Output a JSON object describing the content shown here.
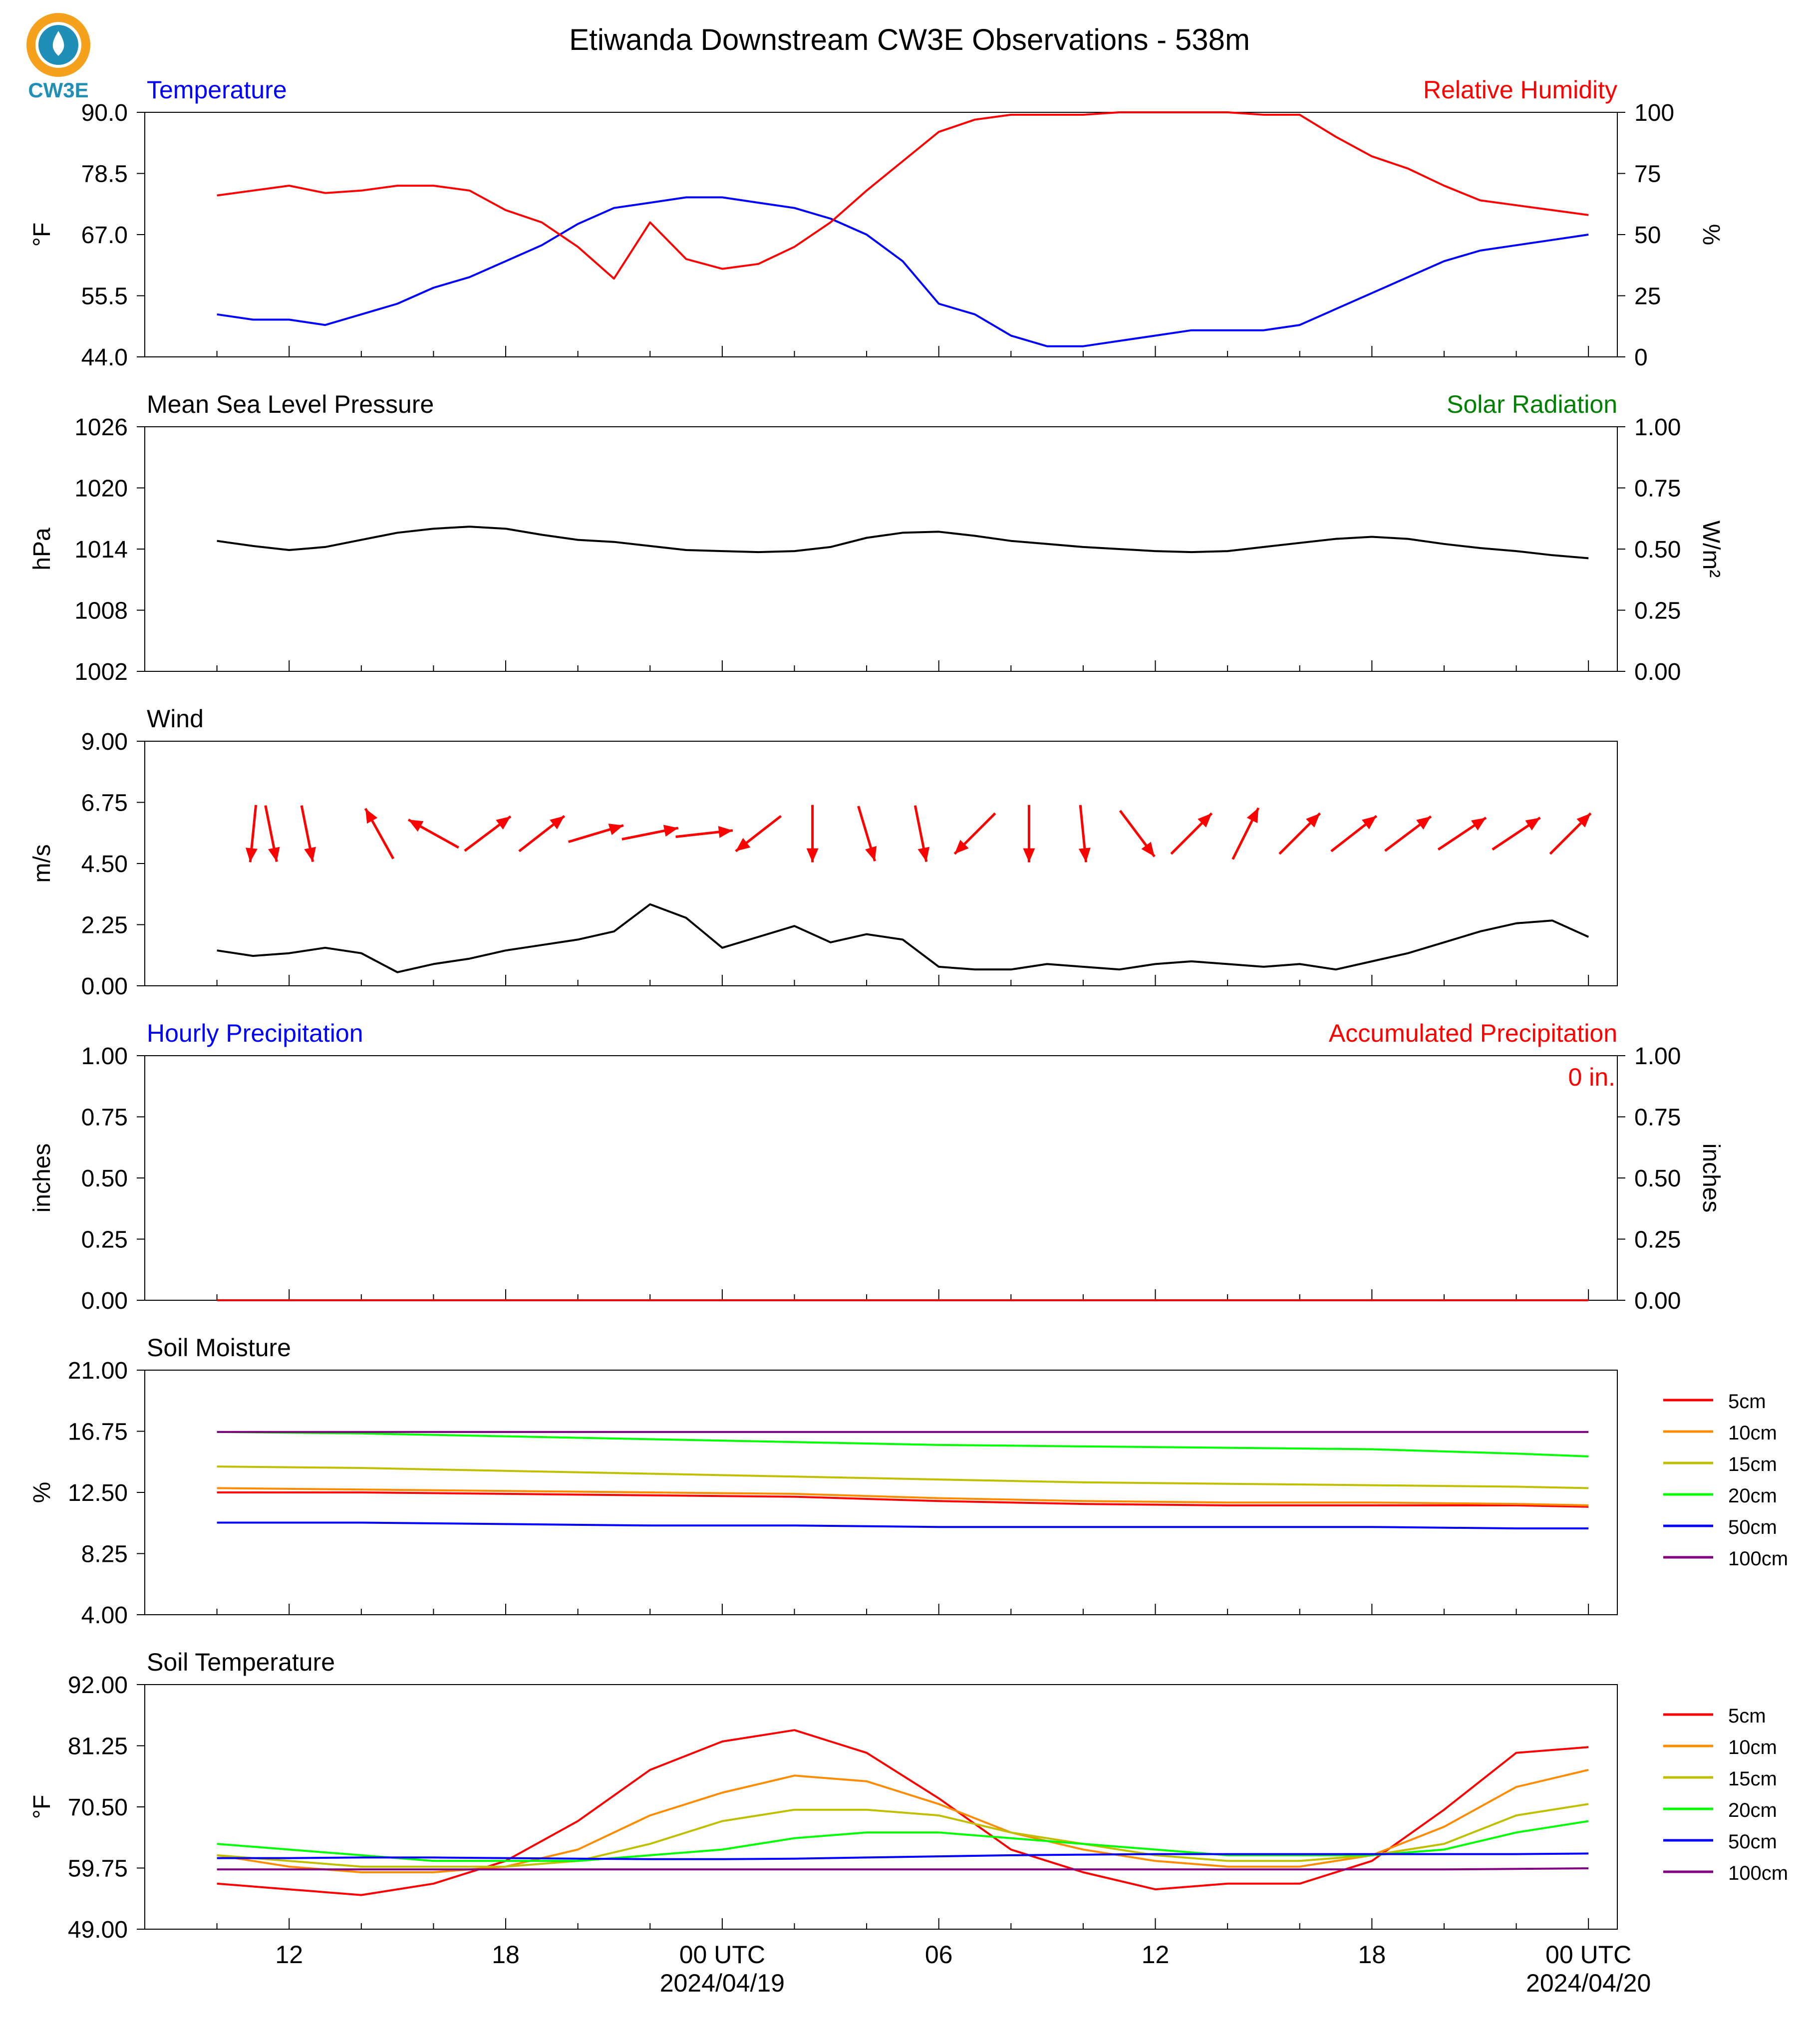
{
  "title": "Etiwanda Downstream CW3E Observations - 538m",
  "logo": {
    "text": "CW3E",
    "icon": "water-drop-logo-icon",
    "color": "#1f8fb8",
    "accent": "#f5a11c"
  },
  "x_axis": {
    "tick_labels": [
      "12",
      "18",
      "00 UTC",
      "06",
      "12",
      "18",
      "00 UTC"
    ],
    "date_labels": [
      "2024/04/19",
      "2024/04/20"
    ]
  },
  "chart_data": [
    {
      "type": "line",
      "title_left": "Temperature",
      "title_right": "Relative Humidity",
      "ylabel_left": "°F",
      "ylabel_right": "%",
      "ylim": [
        44.0,
        90.0
      ],
      "y2lim": [
        0,
        100
      ],
      "yticks": [
        "44.0",
        "55.5",
        "67.0",
        "78.5",
        "90.0"
      ],
      "y2ticks": [
        "0",
        "25",
        "50",
        "75",
        "100"
      ],
      "colors": {
        "left": "#0000ff",
        "right": "#ff0000"
      },
      "x_hours": [
        10,
        11,
        12,
        13,
        14,
        15,
        16,
        17,
        18,
        19,
        20,
        21,
        22,
        23,
        24,
        25,
        26,
        27,
        28,
        29,
        30,
        31,
        32,
        33,
        34,
        35,
        36,
        37,
        38,
        39,
        40,
        41,
        42,
        43,
        44,
        45,
        46,
        47,
        48
      ],
      "series": [
        {
          "name": "Temperature",
          "axis": "left",
          "values": [
            52,
            51,
            51,
            50,
            52,
            54,
            57,
            59,
            62,
            65,
            69,
            72,
            73,
            74,
            74,
            73,
            72,
            70,
            67,
            62,
            54,
            52,
            48,
            46,
            46,
            47,
            48,
            49,
            49,
            49,
            50,
            53,
            56,
            59,
            62,
            64,
            65,
            66,
            67
          ]
        },
        {
          "name": "Relative Humidity",
          "axis": "right",
          "values": [
            66,
            68,
            70,
            67,
            68,
            70,
            70,
            68,
            60,
            55,
            45,
            32,
            55,
            40,
            36,
            38,
            45,
            55,
            68,
            80,
            92,
            97,
            99,
            99,
            99,
            100,
            100,
            100,
            100,
            99,
            99,
            90,
            82,
            77,
            70,
            64,
            62,
            60,
            58
          ]
        }
      ]
    },
    {
      "type": "line",
      "title_left": "Mean Sea Level Pressure",
      "title_right": "Solar Radiation",
      "ylabel_left": "hPa",
      "ylabel_right": "W/m²",
      "ylim": [
        1002,
        1026
      ],
      "y2lim": [
        0.0,
        1.0
      ],
      "yticks": [
        "1002",
        "1008",
        "1014",
        "1020",
        "1026"
      ],
      "y2ticks": [
        "0.00",
        "0.25",
        "0.50",
        "0.75",
        "1.00"
      ],
      "colors": {
        "left": "#000000",
        "right": "#008000"
      },
      "x_hours": [
        10,
        11,
        12,
        13,
        14,
        15,
        16,
        17,
        18,
        19,
        20,
        21,
        22,
        23,
        24,
        25,
        26,
        27,
        28,
        29,
        30,
        31,
        32,
        33,
        34,
        35,
        36,
        37,
        38,
        39,
        40,
        41,
        42,
        43,
        44,
        45,
        46,
        47,
        48
      ],
      "series": [
        {
          "name": "Mean Sea Level Pressure",
          "axis": "left",
          "values": [
            1014.8,
            1014.3,
            1013.9,
            1014.2,
            1014.9,
            1015.6,
            1016.0,
            1016.2,
            1016.0,
            1015.4,
            1014.9,
            1014.7,
            1014.3,
            1013.9,
            1013.8,
            1013.7,
            1013.8,
            1014.2,
            1015.1,
            1015.6,
            1015.7,
            1015.3,
            1014.8,
            1014.5,
            1014.2,
            1014.0,
            1013.8,
            1013.7,
            1013.8,
            1014.2,
            1014.6,
            1015.0,
            1015.2,
            1015.0,
            1014.5,
            1014.1,
            1013.8,
            1013.4,
            1013.1
          ]
        }
      ]
    },
    {
      "type": "line",
      "title_left": "Wind",
      "ylabel_left": "m/s",
      "ylim": [
        0.0,
        9.0
      ],
      "yticks": [
        "0.00",
        "2.25",
        "4.50",
        "6.75",
        "9.00"
      ],
      "colors": {
        "speed": "#000000",
        "arrows": "#ff0000"
      },
      "x_hours": [
        10,
        11,
        12,
        13,
        14,
        15,
        16,
        17,
        18,
        19,
        20,
        21,
        22,
        23,
        24,
        25,
        26,
        27,
        28,
        29,
        30,
        31,
        32,
        33,
        34,
        35,
        36,
        37,
        38,
        39,
        40,
        41,
        42,
        43,
        44,
        45,
        46,
        47,
        48
      ],
      "series": [
        {
          "name": "Wind Speed",
          "values": [
            1.3,
            1.1,
            1.2,
            1.4,
            1.2,
            0.5,
            0.8,
            1.0,
            1.3,
            1.5,
            1.7,
            2.0,
            3.0,
            2.5,
            1.4,
            1.8,
            2.2,
            1.6,
            1.9,
            1.7,
            0.7,
            0.6,
            0.6,
            0.8,
            0.7,
            0.6,
            0.8,
            0.9,
            0.8,
            0.7,
            0.8,
            0.6,
            0.9,
            1.2,
            1.6,
            2.0,
            2.3,
            2.4,
            1.8
          ]
        }
      ],
      "arrows": {
        "x_hours": [
          11.0,
          11.5,
          12.5,
          14.5,
          16.0,
          17.5,
          19.0,
          20.5,
          22.0,
          23.5,
          25.0,
          26.5,
          28.0,
          29.5,
          31.0,
          32.5,
          34.0,
          35.5,
          37.0,
          38.5,
          40.0,
          41.5,
          43.0,
          44.5,
          46.0,
          47.5
        ],
        "u": [
          -0.1,
          0.2,
          0.2,
          -0.5,
          -0.9,
          0.8,
          0.9,
          1.0,
          1.0,
          0.9,
          -0.9,
          0.0,
          0.3,
          0.2,
          -0.7,
          0.0,
          0.1,
          0.6,
          0.7,
          0.5,
          0.9,
          0.9,
          0.8,
          0.9,
          0.9,
          0.7
        ],
        "v": [
          -1.0,
          -1.0,
          -1.0,
          0.9,
          0.5,
          0.6,
          0.7,
          0.3,
          0.2,
          0.1,
          -0.7,
          -1.0,
          -1.0,
          -1.0,
          -0.7,
          -1.0,
          -1.0,
          -0.8,
          0.7,
          1.0,
          0.9,
          0.7,
          0.6,
          0.6,
          0.6,
          0.7
        ]
      }
    },
    {
      "type": "line",
      "title_left": "Hourly Precipitation",
      "title_right": "Accumulated Precipitation",
      "annotation": "0 in.",
      "ylabel_left": "inches",
      "ylabel_right": "inches",
      "ylim": [
        0.0,
        1.0
      ],
      "y2lim": [
        0.0,
        1.0
      ],
      "yticks": [
        "0.00",
        "0.25",
        "0.50",
        "0.75",
        "1.00"
      ],
      "y2ticks": [
        "0.00",
        "0.25",
        "0.50",
        "0.75",
        "1.00"
      ],
      "colors": {
        "left": "#0000ff",
        "right": "#ff0000"
      },
      "series": [
        {
          "name": "Hourly Precipitation",
          "axis": "left",
          "values": [
            0,
            0
          ]
        },
        {
          "name": "Accumulated Precipitation",
          "axis": "right",
          "values": [
            0,
            0
          ]
        }
      ]
    },
    {
      "type": "line",
      "title_left": "Soil Moisture",
      "ylabel_left": "%",
      "ylim": [
        4.0,
        21.0
      ],
      "yticks": [
        "4.00",
        "8.25",
        "12.50",
        "16.75",
        "21.00"
      ],
      "x_hours": [
        10,
        14,
        18,
        22,
        26,
        30,
        34,
        38,
        42,
        46,
        48
      ],
      "series": [
        {
          "name": "5cm",
          "color": "#ff0000",
          "values": [
            12.5,
            12.5,
            12.4,
            12.3,
            12.2,
            11.9,
            11.7,
            11.6,
            11.6,
            11.6,
            11.5
          ]
        },
        {
          "name": "10cm",
          "color": "#ff8c00",
          "values": [
            12.8,
            12.7,
            12.6,
            12.5,
            12.4,
            12.1,
            11.9,
            11.8,
            11.8,
            11.7,
            11.6
          ]
        },
        {
          "name": "15cm",
          "color": "#bfbf00",
          "values": [
            14.3,
            14.2,
            14.0,
            13.8,
            13.6,
            13.4,
            13.2,
            13.1,
            13.0,
            12.9,
            12.8
          ]
        },
        {
          "name": "20cm",
          "color": "#00ff00",
          "values": [
            16.7,
            16.6,
            16.4,
            16.2,
            16.0,
            15.8,
            15.7,
            15.6,
            15.5,
            15.2,
            15.0
          ]
        },
        {
          "name": "50cm",
          "color": "#0000ff",
          "values": [
            10.4,
            10.4,
            10.3,
            10.2,
            10.2,
            10.1,
            10.1,
            10.1,
            10.1,
            10.0,
            10.0
          ]
        },
        {
          "name": "100cm",
          "color": "#800080",
          "values": [
            16.7,
            16.7,
            16.7,
            16.7,
            16.7,
            16.7,
            16.7,
            16.7,
            16.7,
            16.7,
            16.7
          ]
        }
      ]
    },
    {
      "type": "line",
      "title_left": "Soil Temperature",
      "ylabel_left": "°F",
      "ylim": [
        49.0,
        92.0
      ],
      "yticks": [
        "49.00",
        "59.75",
        "70.50",
        "81.25",
        "92.00"
      ],
      "x_hours": [
        10,
        12,
        14,
        16,
        18,
        20,
        22,
        24,
        26,
        28,
        30,
        32,
        34,
        36,
        38,
        40,
        42,
        44,
        46,
        48
      ],
      "series": [
        {
          "name": "5cm",
          "color": "#ff0000",
          "values": [
            57,
            56,
            55,
            57,
            61,
            68,
            77,
            82,
            84,
            80,
            72,
            63,
            59,
            56,
            57,
            57,
            61,
            70,
            80,
            81
          ]
        },
        {
          "name": "10cm",
          "color": "#ff8c00",
          "values": [
            62,
            60,
            59,
            59,
            60,
            63,
            69,
            73,
            76,
            75,
            71,
            66,
            63,
            61,
            60,
            60,
            62,
            67,
            74,
            77
          ]
        },
        {
          "name": "15cm",
          "color": "#bfbf00",
          "values": [
            62,
            61,
            60,
            60,
            60,
            61,
            64,
            68,
            70,
            70,
            69,
            66,
            64,
            62,
            61,
            61,
            62,
            64,
            69,
            71
          ]
        },
        {
          "name": "20cm",
          "color": "#00ff00",
          "values": [
            64,
            63,
            62,
            61,
            61,
            61,
            62,
            63,
            65,
            66,
            66,
            65,
            64,
            63,
            62,
            62,
            62,
            63,
            66,
            68
          ]
        },
        {
          "name": "50cm",
          "color": "#0000ff",
          "values": [
            61.5,
            61.5,
            61.6,
            61.6,
            61.5,
            61.4,
            61.3,
            61.3,
            61.4,
            61.6,
            61.8,
            62.0,
            62.1,
            62.2,
            62.2,
            62.2,
            62.2,
            62.2,
            62.2,
            62.3
          ]
        },
        {
          "name": "100cm",
          "color": "#800080",
          "values": [
            59.5,
            59.5,
            59.5,
            59.5,
            59.5,
            59.5,
            59.5,
            59.5,
            59.5,
            59.5,
            59.5,
            59.5,
            59.5,
            59.5,
            59.5,
            59.5,
            59.5,
            59.5,
            59.6,
            59.7
          ]
        }
      ]
    }
  ]
}
